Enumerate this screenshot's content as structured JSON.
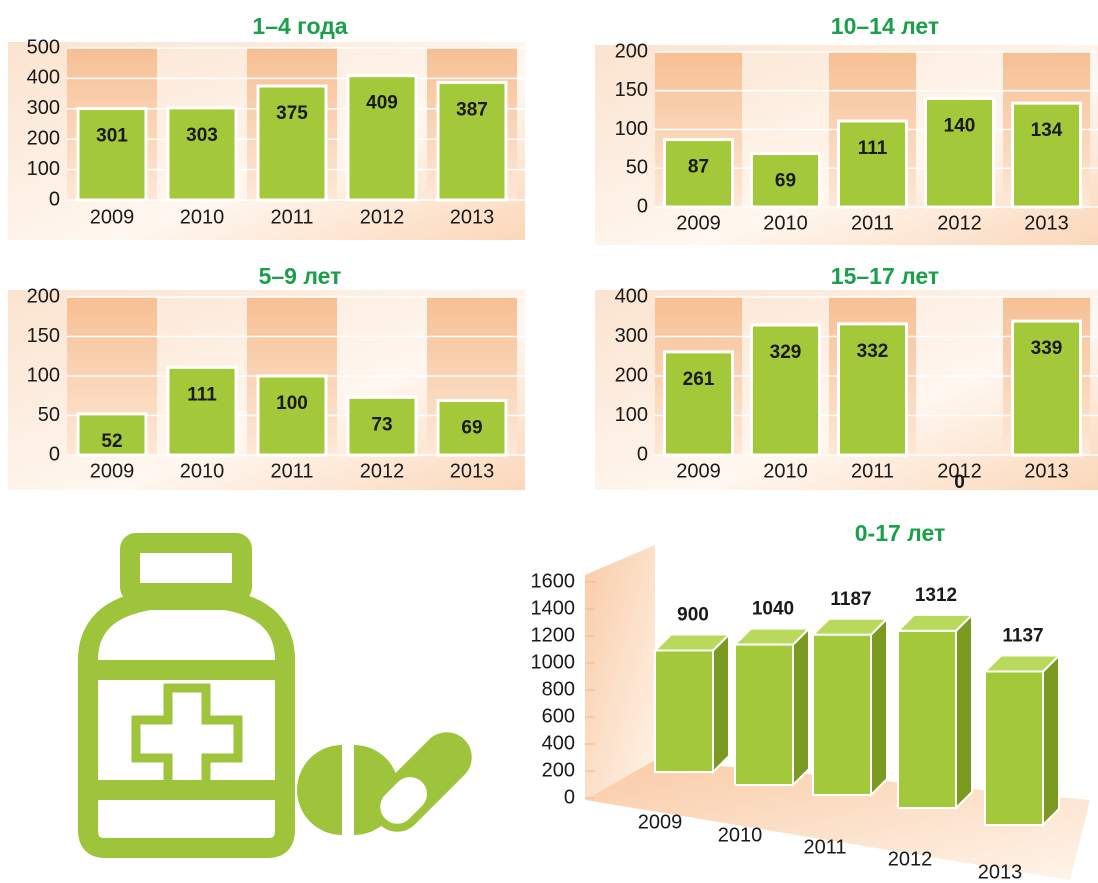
{
  "chart_data": [
    {
      "type": "bar",
      "title": "1–4 года",
      "categories": [
        "2009",
        "2010",
        "2011",
        "2012",
        "2013"
      ],
      "values": [
        301,
        303,
        375,
        409,
        387
      ],
      "color": "#a3c93a",
      "ylim": [
        0,
        500
      ],
      "yticks": [
        0,
        100,
        200,
        300,
        400,
        500
      ],
      "grid": true
    },
    {
      "type": "bar",
      "title": "10–14 лет",
      "categories": [
        "2009",
        "2010",
        "2011",
        "2012",
        "2013"
      ],
      "values": [
        87,
        69,
        111,
        140,
        134
      ],
      "color": "#a3c93a",
      "ylim": [
        0,
        200
      ],
      "yticks": [
        0,
        50,
        100,
        150,
        200
      ],
      "grid": true
    },
    {
      "type": "bar",
      "title": "5–9 лет",
      "categories": [
        "2009",
        "2010",
        "2011",
        "2012",
        "2013"
      ],
      "values": [
        52,
        111,
        100,
        73,
        69
      ],
      "color": "#a3c93a",
      "ylim": [
        0,
        200
      ],
      "yticks": [
        0,
        50,
        100,
        150,
        200
      ],
      "grid": true
    },
    {
      "type": "bar",
      "title": "15–17 лет",
      "categories": [
        "2009",
        "2010",
        "2011",
        "2012",
        "2013"
      ],
      "values": [
        261,
        329,
        332,
        0,
        339
      ],
      "color": "#a3c93a",
      "ylim": [
        0,
        400
      ],
      "yticks": [
        0,
        100,
        200,
        300,
        400
      ],
      "grid": true
    },
    {
      "type": "bar3d",
      "title": "0-17 лет",
      "categories": [
        "2009",
        "2010",
        "2011",
        "2012",
        "2013"
      ],
      "values": [
        900,
        1040,
        1187,
        1312,
        1137
      ],
      "color": "#a3c93a",
      "ylim": [
        0,
        1600
      ],
      "yticks": [
        0,
        200,
        400,
        600,
        800,
        1000,
        1200,
        1400,
        1600
      ],
      "grid": true
    }
  ]
}
